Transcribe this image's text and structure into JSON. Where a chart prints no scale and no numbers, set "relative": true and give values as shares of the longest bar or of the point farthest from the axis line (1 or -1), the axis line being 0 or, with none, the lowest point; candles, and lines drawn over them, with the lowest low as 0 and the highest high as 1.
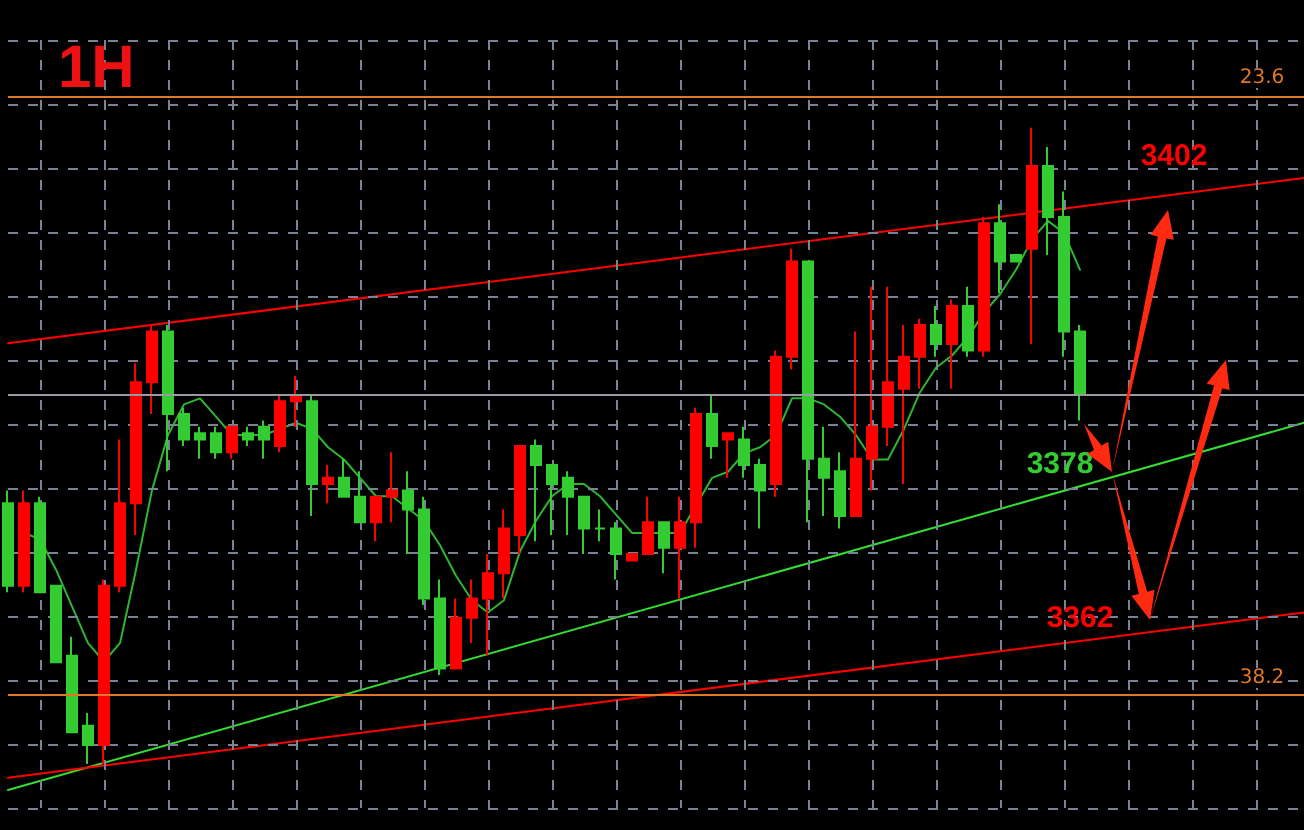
{
  "chart_data": [
    {
      "type": "candlestick",
      "title": "1H",
      "relative": true,
      "grid": true,
      "categories": [
        null,
        null,
        null,
        null,
        null,
        null,
        null,
        null,
        null,
        null,
        null,
        null,
        null,
        null,
        null,
        null,
        null,
        null,
        null,
        null,
        null,
        null,
        null,
        null,
        null,
        null,
        null,
        null,
        null,
        null,
        null,
        null,
        null,
        null,
        null,
        null,
        null,
        null,
        null,
        null,
        null,
        null,
        null,
        null,
        null,
        null,
        null,
        null,
        null,
        null,
        null,
        null,
        null,
        null,
        null,
        null,
        null,
        null,
        null,
        null,
        null,
        null,
        null,
        null,
        null,
        null,
        null,
        null
      ],
      "ohlc": [
        [
          0.41,
          0.43,
          0.27,
          0.28
        ],
        [
          0.28,
          0.43,
          0.27,
          0.41
        ],
        [
          0.41,
          0.42,
          0.27,
          0.27
        ],
        [
          0.28,
          0.28,
          0.16,
          0.16
        ],
        [
          0.17,
          0.2,
          0.05,
          0.05
        ],
        [
          0.06,
          0.08,
          0,
          0.03
        ],
        [
          0.03,
          0.29,
          0,
          0.28
        ],
        [
          0.28,
          0.51,
          0.27,
          0.41
        ],
        [
          0.41,
          0.63,
          0.36,
          0.6
        ],
        [
          0.6,
          0.69,
          0.55,
          0.68
        ],
        [
          0.68,
          0.69,
          0.46,
          0.55
        ],
        [
          0.55,
          0.56,
          0.5,
          0.51
        ],
        [
          0.52,
          0.53,
          0.48,
          0.51
        ],
        [
          0.52,
          0.53,
          0.48,
          0.49
        ],
        [
          0.49,
          0.53,
          0.48,
          0.53
        ],
        [
          0.52,
          0.53,
          0.5,
          0.51
        ],
        [
          0.53,
          0.54,
          0.48,
          0.51
        ],
        [
          0.5,
          0.58,
          0.49,
          0.57
        ],
        [
          0.57,
          0.61,
          0.53,
          0.58
        ],
        [
          0.57,
          0.58,
          0.39,
          0.44
        ],
        [
          0.44,
          0.47,
          0.41,
          0.45
        ],
        [
          0.45,
          0.48,
          0.42,
          0.42
        ],
        [
          0.42,
          0.46,
          0.38,
          0.38
        ],
        [
          0.38,
          0.42,
          0.35,
          0.42
        ],
        [
          0.42,
          0.49,
          0.38,
          0.43
        ],
        [
          0.43,
          0.46,
          0.33,
          0.4
        ],
        [
          0.4,
          0.42,
          0.25,
          0.26
        ],
        [
          0.26,
          0.29,
          0.14,
          0.15
        ],
        [
          0.15,
          0.26,
          0.15,
          0.23
        ],
        [
          0.23,
          0.29,
          0.19,
          0.26
        ],
        [
          0.26,
          0.33,
          0.17,
          0.3
        ],
        [
          0.3,
          0.4,
          0.26,
          0.37
        ],
        [
          0.36,
          0.5,
          0.33,
          0.5
        ],
        [
          0.5,
          0.51,
          0.35,
          0.47
        ],
        [
          0.47,
          0.47,
          0.36,
          0.44
        ],
        [
          0.45,
          0.46,
          0.36,
          0.42
        ],
        [
          0.42,
          0.42,
          0.33,
          0.37
        ],
        [
          0.37,
          0.4,
          0.35,
          0.37
        ],
        [
          0.37,
          0.38,
          0.29,
          0.33
        ],
        [
          0.32,
          0.33,
          0.32,
          0.33
        ],
        [
          0.33,
          0.42,
          0.33,
          0.38
        ],
        [
          0.38,
          0.38,
          0.3,
          0.34
        ],
        [
          0.34,
          0.42,
          0.26,
          0.38
        ],
        [
          0.38,
          0.56,
          0.34,
          0.55
        ],
        [
          0.55,
          0.58,
          0.48,
          0.5
        ],
        [
          0.51,
          0.52,
          0.45,
          0.52
        ],
        [
          0.51,
          0.53,
          0.45,
          0.47
        ],
        [
          0.47,
          0.48,
          0.37,
          0.43
        ],
        [
          0.44,
          0.65,
          0.42,
          0.64
        ],
        [
          0.64,
          0.81,
          0.62,
          0.79
        ],
        [
          0.79,
          0.79,
          0.38,
          0.48
        ],
        [
          0.48,
          0.53,
          0.39,
          0.45
        ],
        [
          0.46,
          0.49,
          0.37,
          0.39
        ],
        [
          0.39,
          0.68,
          0.39,
          0.48
        ],
        [
          0.48,
          0.75,
          0.43,
          0.53
        ],
        [
          0.53,
          0.75,
          0.5,
          0.6
        ],
        [
          0.59,
          0.69,
          0.44,
          0.64
        ],
        [
          0.64,
          0.7,
          0.59,
          0.69
        ],
        [
          0.69,
          0.72,
          0.64,
          0.66
        ],
        [
          0.66,
          0.73,
          0.59,
          0.72
        ],
        [
          0.72,
          0.75,
          0.64,
          0.65
        ],
        [
          0.65,
          0.86,
          0.64,
          0.85
        ],
        [
          0.85,
          0.88,
          0.74,
          0.79
        ],
        [
          0.8,
          0.8,
          0.79,
          0.79
        ],
        [
          0.81,
          1,
          0.66,
          0.94
        ],
        [
          0.94,
          0.97,
          0.8,
          0.86
        ],
        [
          0.86,
          0.9,
          0.64,
          0.68
        ],
        [
          0.68,
          0.69,
          0.54,
          0.58
        ]
      ],
      "colors": [
        "#33cc33",
        "#ff0000",
        "#33cc33",
        "#33cc33",
        "#33cc33",
        "#33cc33",
        "#ff0000",
        "#ff0000",
        "#ff0000",
        "#ff0000",
        "#33cc33",
        "#33cc33",
        "#33cc33",
        "#33cc33",
        "#ff0000",
        "#33cc33",
        "#33cc33",
        "#ff0000",
        "#ff0000",
        "#33cc33",
        "#ff0000",
        "#33cc33",
        "#33cc33",
        "#ff0000",
        "#ff0000",
        "#33cc33",
        "#33cc33",
        "#33cc33",
        "#ff0000",
        "#ff0000",
        "#ff0000",
        "#ff0000",
        "#ff0000",
        "#33cc33",
        "#33cc33",
        "#33cc33",
        "#33cc33",
        "#33cc33",
        "#33cc33",
        "#ff0000",
        "#ff0000",
        "#33cc33",
        "#ff0000",
        "#ff0000",
        "#33cc33",
        "#ff0000",
        "#33cc33",
        "#33cc33",
        "#ff0000",
        "#ff0000",
        "#33cc33",
        "#33cc33",
        "#33cc33",
        "#ff0000",
        "#ff0000",
        "#ff0000",
        "#ff0000",
        "#ff0000",
        "#33cc33",
        "#ff0000",
        "#33cc33",
        "#ff0000",
        "#33cc33",
        "#33cc33",
        "#ff0000",
        "#33cc33",
        "#33cc33",
        "#33cc33"
      ],
      "ref_lines": [
        {
          "axis": "y",
          "value": 1.05,
          "color": "#e07828"
        },
        {
          "axis": "y",
          "value": 0.11,
          "color": "#e07828"
        },
        {
          "axis": "y",
          "value": 0.58,
          "color": "#9a9aa4"
        }
      ],
      "annotations": [
        "3402",
        "3378",
        "3362",
        "23.6",
        "38.2"
      ]
    },
    {
      "type": "line",
      "relative": true,
      "marker": "none",
      "categories": [
        null,
        null,
        null,
        null,
        null,
        null,
        null,
        null,
        null,
        null,
        null,
        null,
        null,
        null,
        null,
        null,
        null,
        null,
        null,
        null,
        null,
        null,
        null,
        null,
        null,
        null,
        null,
        null,
        null,
        null,
        null,
        null,
        null,
        null,
        null,
        null,
        null,
        null,
        null,
        null,
        null,
        null,
        null,
        null,
        null,
        null,
        null,
        null,
        null,
        null,
        null,
        null,
        null,
        null,
        null,
        null,
        null,
        null,
        null,
        null,
        null,
        null,
        null,
        null,
        null,
        null,
        null,
        null,
        null,
        null,
        null,
        null,
        null,
        null,
        null,
        null,
        null,
        null,
        null,
        null,
        null,
        null
      ],
      "series": [
        {
          "color": "#2fb52f",
          "values": [
            null,
            0.42,
            0.41,
            0.36,
            0.3,
            0.24,
            0.21,
            0.24,
            0.36,
            0.49,
            0.58,
            0.63,
            0.64,
            0.61,
            0.58,
            0.58,
            0.58,
            0.59,
            0.6,
            0.59,
            0.56,
            0.54,
            0.51,
            0.48,
            0.48,
            0.46,
            0.44,
            0.4,
            0.35,
            0.31,
            0.29,
            0.31,
            0.39,
            0.44,
            0.48,
            0.5,
            0.5,
            0.48,
            0.45,
            0.42,
            0.42,
            0.42,
            0.42,
            null,
            0.51,
            0.52,
            0.55,
            0.56,
            0.58,
            0.64,
            0.64,
            0.63,
            0.61,
            0.58,
            0.54,
            0.54,
            0.59,
            0.65,
            0.69,
            0.71,
            0.74,
            0.78,
            0.81,
            0.85,
            0.9,
            0.93,
            0.91,
            0.85,
            null,
            null,
            null,
            null,
            null,
            null,
            null,
            null,
            null,
            null,
            null,
            null,
            null,
            null
          ]
        },
        {
          "color": "#ff0000",
          "values": [
            0.73,
            null,
            null,
            null,
            null,
            null,
            null,
            null,
            null,
            null,
            null,
            null,
            null,
            null,
            null,
            null,
            null,
            null,
            null,
            null,
            null,
            null,
            null,
            null,
            null,
            null,
            null,
            null,
            null,
            null,
            null,
            null,
            null,
            null,
            null,
            null,
            null,
            null,
            null,
            null,
            null,
            null,
            null,
            null,
            null,
            null,
            null,
            null,
            null,
            null,
            null,
            null,
            null,
            null,
            null,
            null,
            null,
            null,
            null,
            null,
            null,
            null,
            null,
            null,
            null,
            null,
            null,
            null,
            null,
            null,
            null,
            null,
            null,
            null,
            null,
            null,
            null,
            null,
            null,
            null,
            null,
            1
          ]
        },
        {
          "color": "#33dd33",
          "values": [
            0,
            null,
            null,
            null,
            null,
            null,
            null,
            null,
            null,
            null,
            null,
            null,
            null,
            null,
            null,
            null,
            null,
            null,
            null,
            null,
            null,
            null,
            null,
            null,
            null,
            null,
            null,
            null,
            null,
            null,
            null,
            null,
            null,
            null,
            null,
            null,
            null,
            null,
            null,
            null,
            null,
            null,
            null,
            null,
            null,
            null,
            null,
            null,
            null,
            null,
            null,
            null,
            null,
            null,
            null,
            null,
            null,
            null,
            null,
            null,
            null,
            null,
            null,
            null,
            null,
            null,
            null,
            null,
            null,
            null,
            null,
            null,
            null,
            null,
            null,
            null,
            null,
            null,
            null,
            null,
            null,
            0.6
          ]
        },
        {
          "color": "#ff0000",
          "values": [
            0.02,
            null,
            null,
            null,
            null,
            null,
            null,
            null,
            null,
            null,
            null,
            null,
            null,
            null,
            null,
            null,
            null,
            null,
            null,
            null,
            null,
            null,
            null,
            null,
            null,
            null,
            null,
            null,
            null,
            null,
            null,
            null,
            null,
            null,
            null,
            null,
            null,
            null,
            null,
            null,
            null,
            null,
            null,
            null,
            null,
            null,
            null,
            null,
            null,
            null,
            null,
            null,
            null,
            null,
            null,
            null,
            null,
            null,
            null,
            null,
            null,
            null,
            null,
            null,
            null,
            null,
            null,
            null,
            null,
            null,
            null,
            null,
            null,
            null,
            null,
            null,
            null,
            null,
            null,
            null,
            null,
            0.29
          ]
        }
      ]
    }
  ]
}
